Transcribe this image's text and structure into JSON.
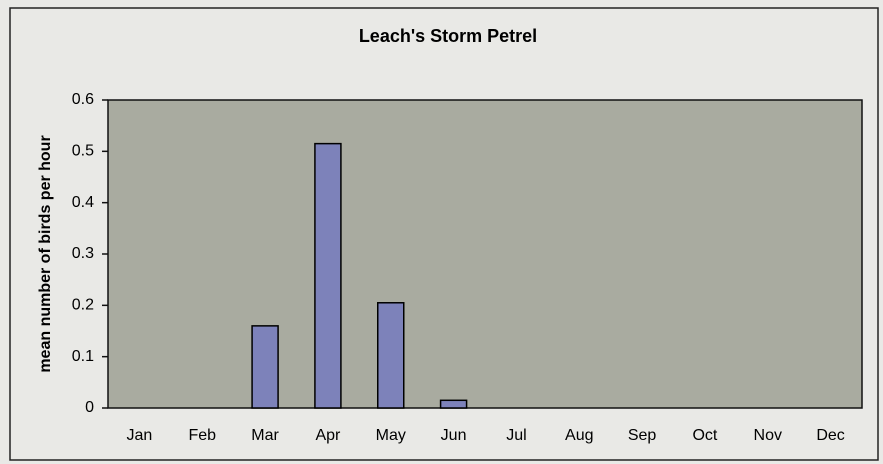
{
  "chart_data": {
    "type": "bar",
    "title": "Leach's Storm Petrel",
    "y_label": "mean number of birds per hour",
    "categories": [
      "Jan",
      "Feb",
      "Mar",
      "Apr",
      "May",
      "Jun",
      "Jul",
      "Aug",
      "Sep",
      "Oct",
      "Nov",
      "Dec"
    ],
    "values": [
      0,
      0,
      0.16,
      0.515,
      0.205,
      0.015,
      0,
      0,
      0,
      0,
      0,
      0
    ],
    "color": "#7d82ba",
    "ylim": [
      0,
      0.6
    ],
    "yticks": [
      0,
      0.1,
      0.2,
      0.3,
      0.4,
      0.5,
      0.6
    ],
    "grid": false
  }
}
